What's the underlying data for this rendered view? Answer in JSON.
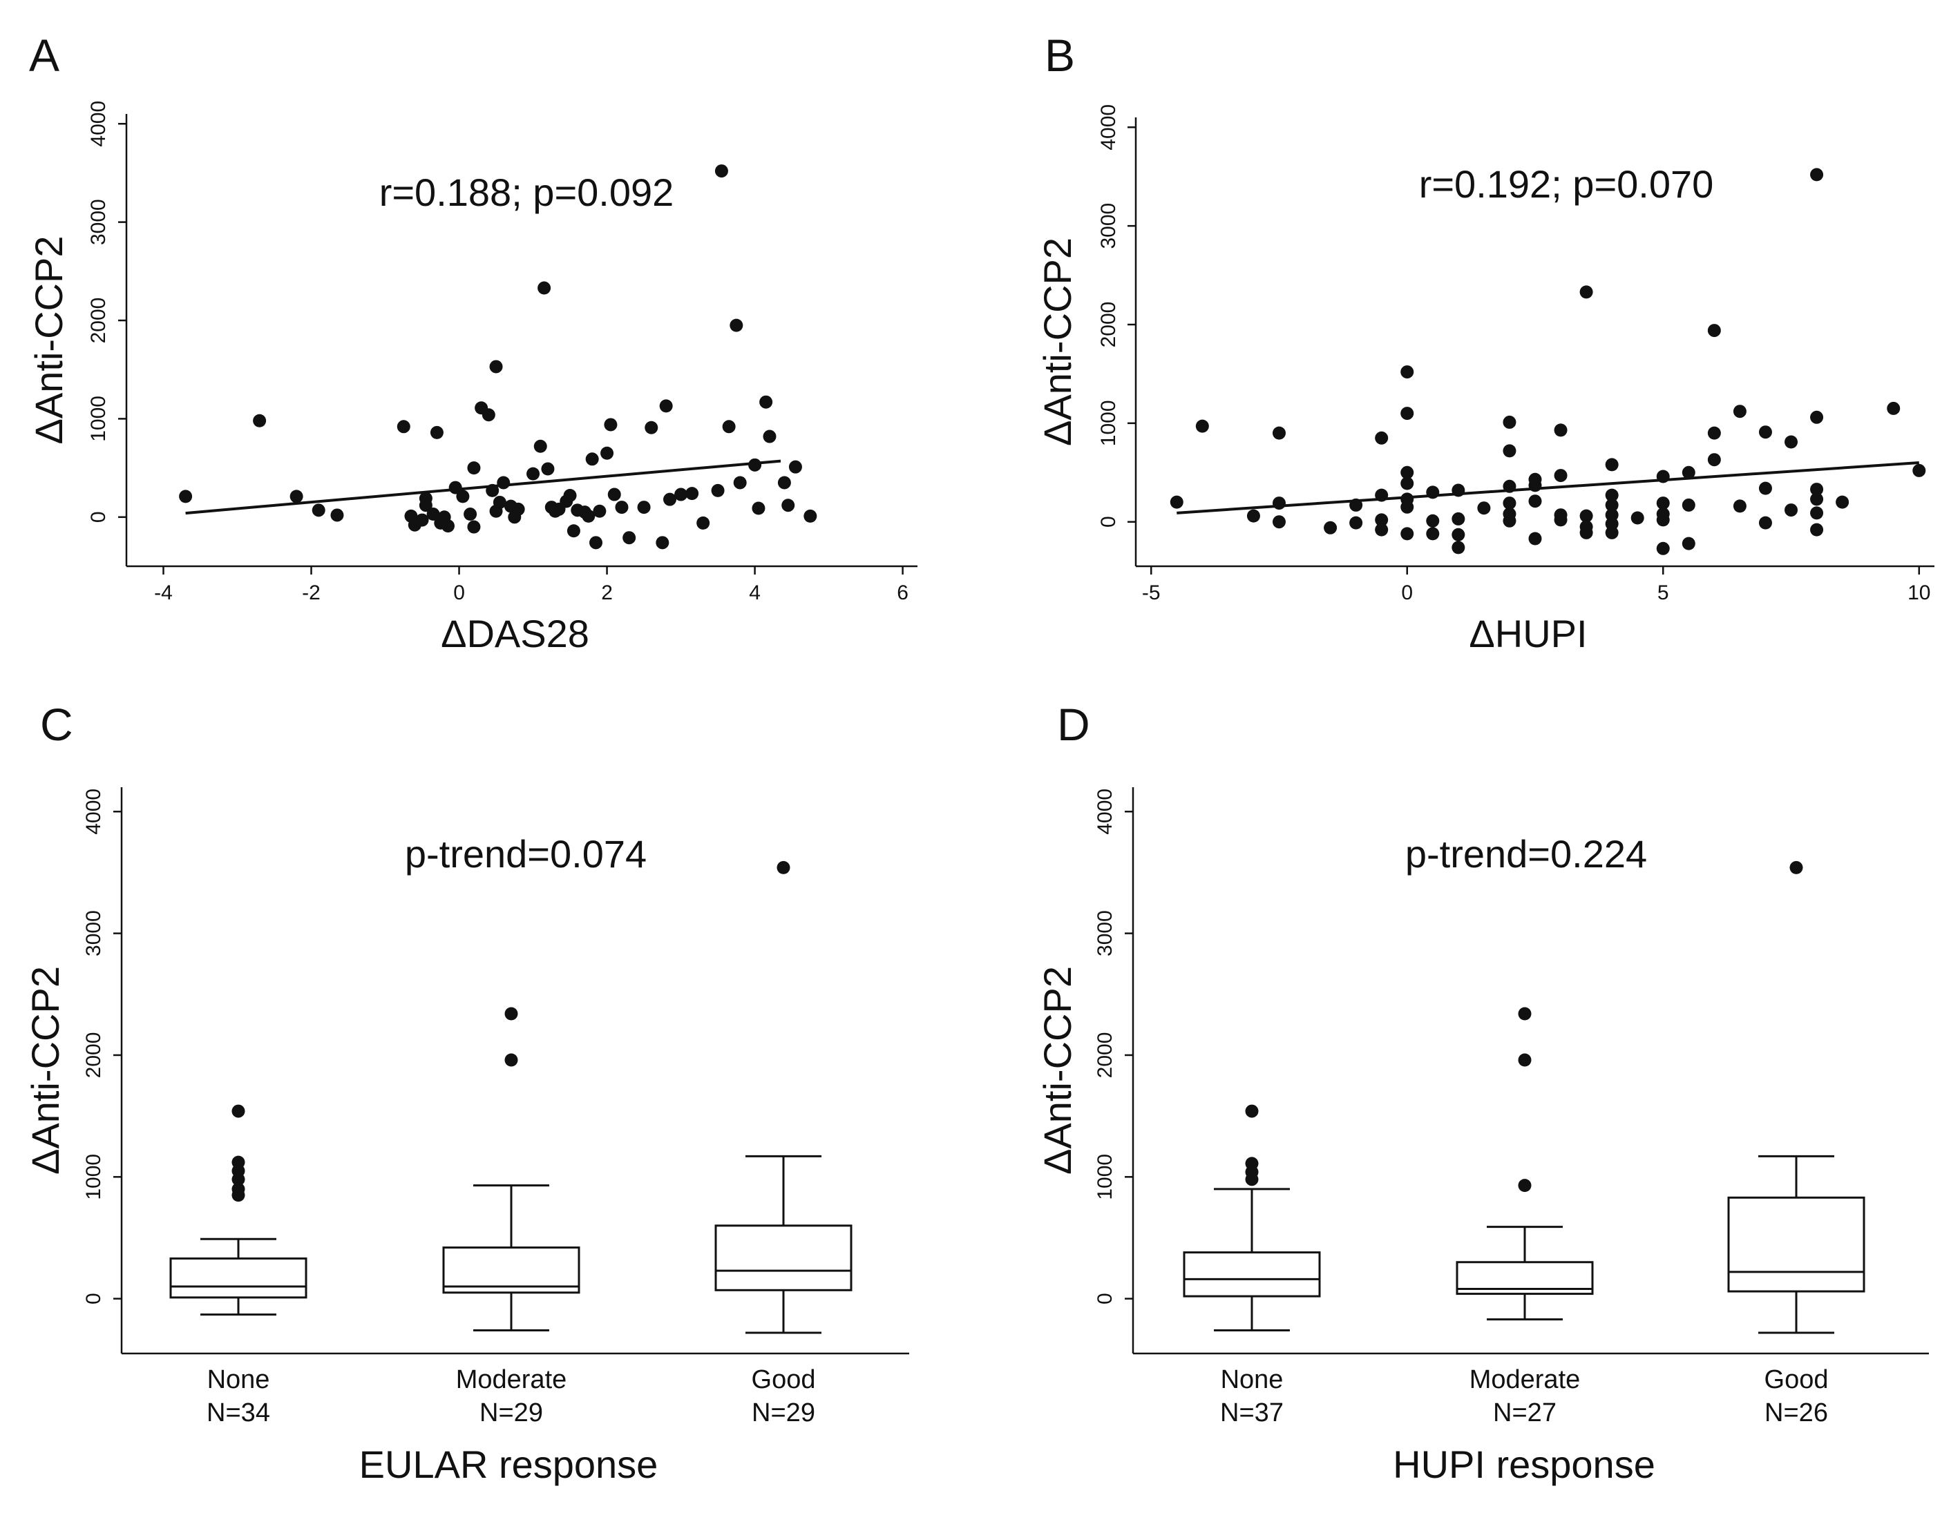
{
  "chart_data": [
    {
      "panel": "A",
      "type": "scatter",
      "xlabel": "ΔDAS28",
      "ylabel": "ΔAnti-CCP2",
      "annotation": "r=0.188; p=0.092",
      "xlim": [
        -4.5,
        6.2
      ],
      "ylim": [
        -500,
        4100
      ],
      "xticks": [
        -4,
        -2,
        0,
        2,
        4,
        6
      ],
      "yticks": [
        0,
        1000,
        2000,
        3000,
        4000
      ],
      "fit": {
        "x": [
          -3.7,
          4.35
        ],
        "y": [
          40,
          570
        ]
      },
      "points": [
        [
          -3.7,
          210
        ],
        [
          -2.7,
          980
        ],
        [
          -2.2,
          210
        ],
        [
          -1.9,
          70
        ],
        [
          -1.65,
          20
        ],
        [
          -0.75,
          920
        ],
        [
          -0.65,
          10
        ],
        [
          -0.6,
          -80
        ],
        [
          -0.5,
          -30
        ],
        [
          -0.45,
          120
        ],
        [
          -0.45,
          190
        ],
        [
          -0.35,
          30
        ],
        [
          -0.3,
          860
        ],
        [
          -0.25,
          -60
        ],
        [
          -0.2,
          0
        ],
        [
          -0.15,
          -90
        ],
        [
          -0.05,
          300
        ],
        [
          0.05,
          210
        ],
        [
          0.15,
          30
        ],
        [
          0.2,
          -100
        ],
        [
          0.2,
          500
        ],
        [
          0.3,
          1110
        ],
        [
          0.4,
          1040
        ],
        [
          0.45,
          270
        ],
        [
          0.5,
          1530
        ],
        [
          0.5,
          60
        ],
        [
          0.55,
          150
        ],
        [
          0.6,
          350
        ],
        [
          0.7,
          110
        ],
        [
          0.75,
          0
        ],
        [
          0.8,
          80
        ],
        [
          1.0,
          440
        ],
        [
          1.1,
          720
        ],
        [
          1.15,
          2330
        ],
        [
          1.2,
          490
        ],
        [
          1.25,
          100
        ],
        [
          1.3,
          60
        ],
        [
          1.35,
          80
        ],
        [
          1.45,
          160
        ],
        [
          1.5,
          220
        ],
        [
          1.55,
          -140
        ],
        [
          1.6,
          70
        ],
        [
          1.7,
          50
        ],
        [
          1.75,
          10
        ],
        [
          1.8,
          590
        ],
        [
          1.85,
          -260
        ],
        [
          1.9,
          60
        ],
        [
          2.0,
          650
        ],
        [
          2.05,
          940
        ],
        [
          2.1,
          230
        ],
        [
          2.2,
          100
        ],
        [
          2.3,
          -210
        ],
        [
          2.5,
          100
        ],
        [
          2.6,
          910
        ],
        [
          2.75,
          -260
        ],
        [
          2.8,
          1130
        ],
        [
          2.85,
          180
        ],
        [
          3.0,
          230
        ],
        [
          3.15,
          240
        ],
        [
          3.3,
          -60
        ],
        [
          3.5,
          270
        ],
        [
          3.55,
          3520
        ],
        [
          3.65,
          920
        ],
        [
          3.75,
          1950
        ],
        [
          3.8,
          350
        ],
        [
          4.0,
          530
        ],
        [
          4.05,
          90
        ],
        [
          4.15,
          1170
        ],
        [
          4.2,
          820
        ],
        [
          4.4,
          350
        ],
        [
          4.45,
          120
        ],
        [
          4.55,
          510
        ],
        [
          4.75,
          10
        ]
      ]
    },
    {
      "panel": "B",
      "type": "scatter",
      "xlabel": "ΔHUPI",
      "ylabel": "ΔAnti-CCP2",
      "annotation": "r=0.192; p=0.070",
      "xlim": [
        -5.3,
        10.3
      ],
      "ylim": [
        -450,
        4100
      ],
      "xticks": [
        -5,
        0,
        5,
        10
      ],
      "yticks": [
        0,
        1000,
        2000,
        3000,
        4000
      ],
      "fit": {
        "x": [
          -4.5,
          10
        ],
        "y": [
          90,
          600
        ]
      },
      "points": [
        [
          -4.5,
          200
        ],
        [
          -4,
          970
        ],
        [
          -3,
          60
        ],
        [
          -2.5,
          900
        ],
        [
          -2.5,
          190
        ],
        [
          -2.5,
          0
        ],
        [
          -1.5,
          -60
        ],
        [
          -1,
          170
        ],
        [
          -1,
          -10
        ],
        [
          -0.5,
          850
        ],
        [
          -0.5,
          270
        ],
        [
          -0.5,
          20
        ],
        [
          -0.5,
          -80
        ],
        [
          0,
          1520
        ],
        [
          0,
          1100
        ],
        [
          0,
          500
        ],
        [
          0,
          390
        ],
        [
          0,
          230
        ],
        [
          0,
          150
        ],
        [
          0,
          -120
        ],
        [
          0.5,
          300
        ],
        [
          0.5,
          10
        ],
        [
          0.5,
          -120
        ],
        [
          1,
          320
        ],
        [
          1,
          30
        ],
        [
          1,
          -130
        ],
        [
          1,
          -260
        ],
        [
          1.5,
          140
        ],
        [
          2,
          1010
        ],
        [
          2,
          720
        ],
        [
          2,
          360
        ],
        [
          2,
          190
        ],
        [
          2,
          80
        ],
        [
          2,
          10
        ],
        [
          2.5,
          430
        ],
        [
          2.5,
          370
        ],
        [
          2.5,
          210
        ],
        [
          2.5,
          -170
        ],
        [
          3,
          930
        ],
        [
          3,
          470
        ],
        [
          3,
          70
        ],
        [
          3,
          20
        ],
        [
          3.5,
          2330
        ],
        [
          3.5,
          60
        ],
        [
          3.5,
          -50
        ],
        [
          3.5,
          -110
        ],
        [
          4,
          580
        ],
        [
          4,
          270
        ],
        [
          4,
          170
        ],
        [
          4,
          70
        ],
        [
          4,
          -20
        ],
        [
          4,
          -110
        ],
        [
          4.5,
          40
        ],
        [
          5,
          460
        ],
        [
          5,
          190
        ],
        [
          5,
          80
        ],
        [
          5,
          20
        ],
        [
          5,
          -270
        ],
        [
          5.5,
          500
        ],
        [
          5.5,
          170
        ],
        [
          5.5,
          -220
        ],
        [
          6,
          1940
        ],
        [
          6,
          900
        ],
        [
          6,
          630
        ],
        [
          6.5,
          1120
        ],
        [
          6.5,
          160
        ],
        [
          7,
          910
        ],
        [
          7,
          340
        ],
        [
          7,
          -10
        ],
        [
          7.5,
          810
        ],
        [
          7.5,
          120
        ],
        [
          8,
          3520
        ],
        [
          8,
          1060
        ],
        [
          8,
          330
        ],
        [
          8,
          230
        ],
        [
          8,
          90
        ],
        [
          8,
          -80
        ],
        [
          8.5,
          200
        ],
        [
          9.5,
          1150
        ],
        [
          10,
          520
        ]
      ]
    },
    {
      "panel": "C",
      "type": "box",
      "xlabel": "EULAR response",
      "ylabel": "ΔAnti-CCP2",
      "annotation": "p-trend=0.074",
      "ylim": [
        -450,
        4200
      ],
      "yticks": [
        0,
        1000,
        2000,
        3000,
        4000
      ],
      "groups": [
        {
          "label": "None",
          "n": "N=34",
          "whisker_low": -130,
          "q1": 10,
          "median": 100,
          "q3": 330,
          "whisker_high": 490,
          "outliers": [
            850,
            900,
            980,
            1050,
            1120,
            1540
          ]
        },
        {
          "label": "Moderate",
          "n": "N=29",
          "whisker_low": -260,
          "q1": 50,
          "median": 100,
          "q3": 420,
          "whisker_high": 930,
          "outliers": [
            1960,
            2340
          ]
        },
        {
          "label": "Good",
          "n": "N=29",
          "whisker_low": -280,
          "q1": 70,
          "median": 230,
          "q3": 600,
          "whisker_high": 1170,
          "outliers": [
            3540
          ]
        }
      ]
    },
    {
      "panel": "D",
      "type": "box",
      "xlabel": "HUPI response",
      "ylabel": "ΔAnti-CCP2",
      "annotation": "p-trend=0.224",
      "ylim": [
        -450,
        4200
      ],
      "yticks": [
        0,
        1000,
        2000,
        3000,
        4000
      ],
      "groups": [
        {
          "label": "None",
          "n": "N=37",
          "whisker_low": -260,
          "q1": 20,
          "median": 160,
          "q3": 380,
          "whisker_high": 900,
          "outliers": [
            980,
            1040,
            1110,
            1540
          ]
        },
        {
          "label": "Moderate",
          "n": "N=27",
          "whisker_low": -170,
          "q1": 40,
          "median": 80,
          "q3": 300,
          "whisker_high": 590,
          "outliers": [
            930,
            1960,
            2340
          ]
        },
        {
          "label": "Good",
          "n": "N=26",
          "whisker_low": -280,
          "q1": 60,
          "median": 220,
          "q3": 830,
          "whisker_high": 1170,
          "outliers": [
            3540
          ]
        }
      ]
    }
  ]
}
